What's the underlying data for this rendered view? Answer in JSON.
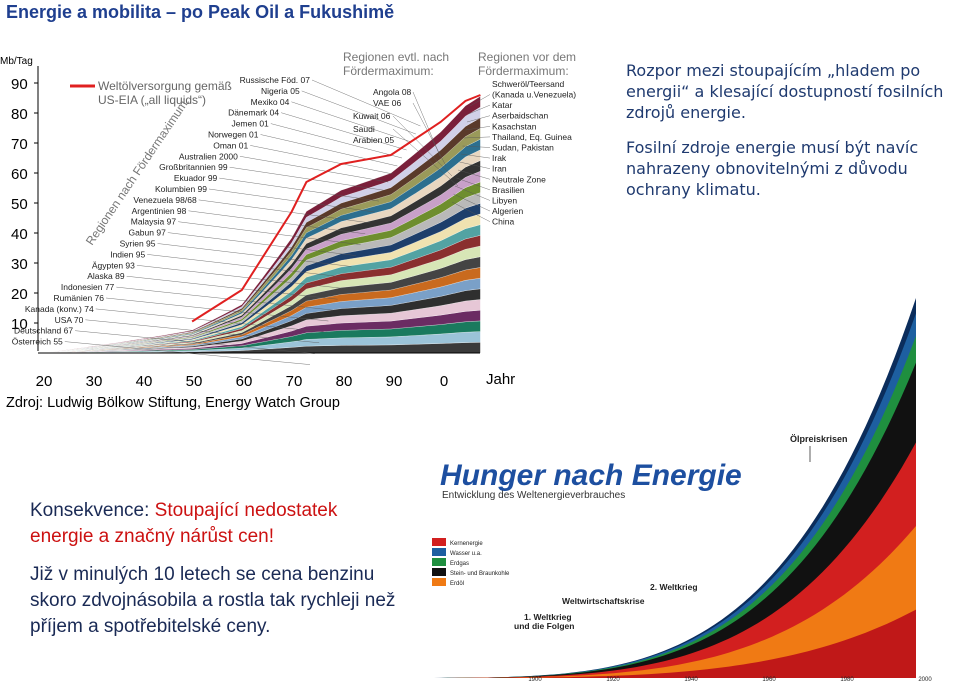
{
  "slide": {
    "title": "Energie a mobilita – po Peak Oil a Fukushimě",
    "right_text_1": "Rozpor mezi stoupajícím „hladem po energii“ a klesající dostupností fosilních zdrojů energie.",
    "right_text_2": "Fosilní zdroje energie musí být navíc nahrazeny obnovitelnými z důvodu ochrany klimatu.",
    "left_text_1_prefix": "Konsekvence: ",
    "left_text_1_red": "Stoupající nedostatek energie a značný nárůst cen!",
    "left_text_2": "Již v minulých 10 letech se cena benzinu skoro zdvojnásobila a rostla tak rychleji než příjem a spotřebitelské ceny.",
    "source": "Zdroj: Ludwig Bölkow Stiftung, Energy Watch Group"
  },
  "colors": {
    "title": "#1f3f8f",
    "body_text": "#1f3a6f",
    "highlight": "#cc1111",
    "world_line": "#e02020"
  },
  "chart_data": [
    {
      "type": "area",
      "unit_label": "Mb/Tag",
      "xlabel": "Jahr",
      "x_ticks": [
        "20",
        "30",
        "40",
        "50",
        "60",
        "70",
        "80",
        "90",
        "0"
      ],
      "y_ticks": [
        10,
        20,
        30,
        40,
        50,
        60,
        70,
        80,
        90
      ],
      "ylim": [
        0,
        95
      ],
      "legend_world": "Weltölversorgung gemäß US-EIA („all liquids“)",
      "group_label_diag": "Regionen nach Fördermaximum:",
      "group_label_possible": "Regionen evtl. nach Fördermaximum:",
      "group_label_before": "Regionen vor dem Fördermaximum:",
      "peaked_regions": [
        "Russische Föd. 07",
        "Nigeria 05",
        "Mexiko 04",
        "Dänemark 04",
        "Jemen 01",
        "Norwegen 01",
        "Oman 01",
        "Australien 2000",
        "Großbritannien 99",
        "Ekuador 99",
        "Kolumbien 99",
        "Venezuela 98/68",
        "Argentinien 98",
        "Malaysia 97",
        "Gabun 97",
        "Syrien 95",
        "Indien 95",
        "Ägypten 93",
        "Alaska 89",
        "Indonesien 77",
        "Rumänien 76",
        "Kanada (konv.) 74",
        "USA 70",
        "Deutschland 67",
        "Österreich 55"
      ],
      "possibly_peaked_regions": [
        "Angola 08",
        "VAE 06",
        "Kuwait 06",
        "Saudi Arabien 05"
      ],
      "pre_peak_regions": [
        "Schweröl/Teersand (Kanada u.Venezuela)",
        "Katar",
        "Aserbaidschan",
        "Kasachstan",
        "Thailand, Eq. Guinea",
        "Sudan, Pakistan",
        "Irak",
        "Iran",
        "Neutrale Zone",
        "Brasilien",
        "Libyen",
        "Algerien",
        "China"
      ],
      "series": [
        {
          "name": "Weltölversorgung gemäß US-EIA („all liquids“)",
          "x": [
            1950,
            1960,
            1970,
            1973,
            1980,
            1990,
            2000,
            2005,
            2008
          ],
          "values": [
            10.5,
            21,
            47,
            57,
            63,
            66,
            77,
            84,
            86
          ]
        }
      ]
    },
    {
      "type": "area",
      "title": "Hunger nach Energie",
      "subtitle": "Entwicklung des Weltenergieverbrauches",
      "legend": [
        "Kernenergie",
        "Wasser u.a.",
        "Erdgas",
        "Stein- und Braunkohle",
        "Erdöl"
      ],
      "annotations": [
        "Ölpreiskrisen",
        "2. Weltkrieg",
        "Weltwirtschaftskrise",
        "1. Weltkrieg und die Folgen"
      ],
      "x_ticks": [
        "1900",
        "1920",
        "1940",
        "1960",
        "1980",
        "2000"
      ]
    }
  ]
}
